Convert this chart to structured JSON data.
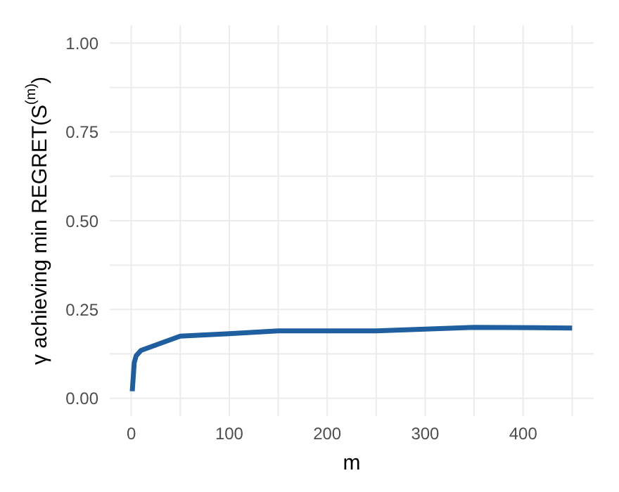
{
  "chart_data": {
    "type": "line",
    "xlabel": "m",
    "ylabel": "γ achieving min REGRET(S$^{(m)}$)",
    "x": [
      1,
      3,
      5,
      10,
      50,
      100,
      150,
      250,
      350,
      450
    ],
    "series": [
      {
        "color": "#1f5fa0",
        "values": [
          0.02,
          0.1,
          0.12,
          0.135,
          0.175,
          0.182,
          0.19,
          0.19,
          0.2,
          0.198
        ]
      }
    ],
    "xlim": [
      -22,
      472
    ],
    "xticks": [
      0,
      {
        "value": 50,
        "label": null
      },
      100,
      {
        "value": 150,
        "label": null
      },
      200,
      {
        "value": 250,
        "label": null
      },
      300,
      {
        "value": 350,
        "label": null
      },
      400,
      {
        "value": 450,
        "label": null
      }
    ],
    "ylim": [
      -0.05,
      1.05
    ],
    "yticks": [
      {
        "value": 0,
        "label": "0.00"
      },
      {
        "value": 0.125,
        "label": null
      },
      {
        "value": 0.25,
        "label": "0.25"
      },
      {
        "value": 0.375,
        "label": null
      },
      {
        "value": 0.5,
        "label": "0.50"
      },
      {
        "value": 0.625,
        "label": null
      },
      {
        "value": 0.75,
        "label": "0.75"
      },
      {
        "value": 0.875,
        "label": null
      },
      {
        "value": 1,
        "label": "1.00"
      }
    ],
    "grid": true,
    "marker": "none",
    "line_style": "solid"
  }
}
